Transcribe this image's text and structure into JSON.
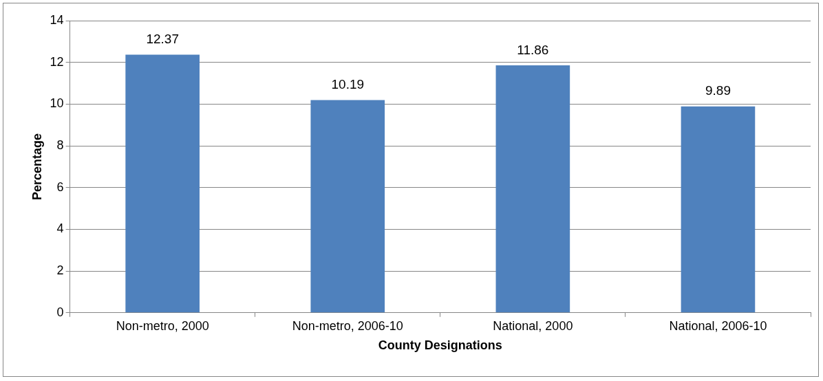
{
  "chart_data": {
    "type": "bar",
    "xlabel": "County Designations",
    "ylabel": "Percentage",
    "categories": [
      "Non-metro, 2000",
      "Non-metro, 2006-10",
      "National, 2000",
      "National, 2006-10"
    ],
    "values": [
      12.37,
      10.19,
      11.86,
      9.89
    ],
    "color": "#4f81bd",
    "ylim": [
      0,
      14
    ],
    "yticks": [
      0,
      2,
      4,
      6,
      8,
      10,
      12,
      14
    ],
    "grid": "y",
    "data_labels": true,
    "legend": false
  }
}
